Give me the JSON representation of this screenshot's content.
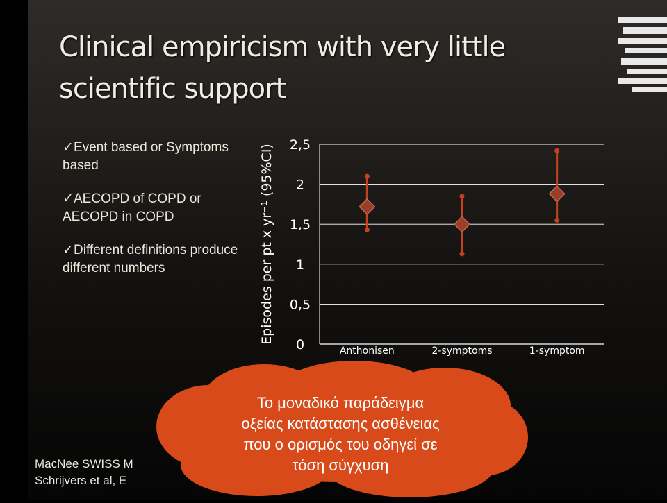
{
  "slide": {
    "title": "Clinical empiricism with very little scientific support",
    "bullets": [
      "Event based or Symptoms based",
      "AECOPD of COPD or AECOPD in COPD",
      "Different definitions produce different numbers"
    ],
    "refs": [
      "MacNee SWISS M",
      "Schrijvers et al, E"
    ],
    "callout": [
      "Το μοναδικό παράδειγμα",
      "οξείας κατάστασης ασθένειας",
      "που ο ορισμός του οδηγεί σε",
      "τόση σύγχυση"
    ],
    "colors": {
      "accent": "#d84a19",
      "marker": "#c9401c",
      "diamond": "#9c3d2a",
      "text": "#ece7dc"
    }
  },
  "chart_data": {
    "type": "scatter",
    "ylabel": "Episodes per pt x yr⁻¹ (95%CI)",
    "yticks": [
      "0",
      "0,5",
      "1",
      "1,5",
      "2",
      "2,5"
    ],
    "ylim": [
      0,
      2.5
    ],
    "categories": [
      "Anthonisen",
      "2-symptoms",
      "1-symptom"
    ],
    "series": [
      {
        "values": [
          1.72,
          1.5,
          1.88
        ],
        "lower": [
          1.43,
          1.13,
          1.55
        ],
        "upper": [
          2.1,
          1.85,
          2.42
        ]
      }
    ],
    "grid": true
  }
}
